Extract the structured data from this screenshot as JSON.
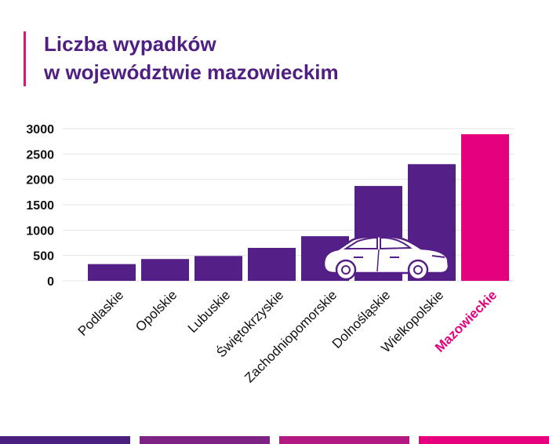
{
  "title": {
    "line1": "Liczba wypadków",
    "line2": "w województwie mazowieckim"
  },
  "colors": {
    "title": "#4f1e82",
    "accent_bar": "#d6187d",
    "bar": "#541f86",
    "highlight": "#e5007e",
    "axis_text": "#111111",
    "grid": "#e6e6e6",
    "footer": [
      "#4b1f7e",
      "#7d2384",
      "#b21a82",
      "#e6007e"
    ]
  },
  "chart_data": {
    "type": "bar",
    "title": "Liczba wypadków w województwie mazowieckim",
    "categories": [
      "Podlaskie",
      "Opolskie",
      "Lubuskie",
      "Świętokrzyskie",
      "Zachodniopomorskie",
      "Dolnośląskie",
      "Wielkopolskie",
      "Mazowieckie"
    ],
    "values": [
      330,
      430,
      490,
      650,
      880,
      1870,
      2300,
      2890
    ],
    "highlight_index": 7,
    "ylim": [
      0,
      3000
    ],
    "yticks": [
      0,
      500,
      1000,
      1500,
      2000,
      2500,
      3000
    ],
    "xlabel": "",
    "ylabel": "",
    "grid": true,
    "legend": "none",
    "decoration": "car-icon"
  }
}
